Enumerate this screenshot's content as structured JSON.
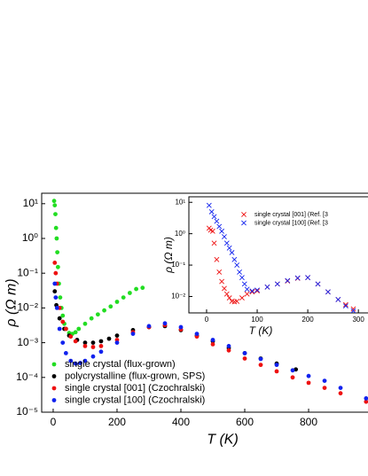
{
  "chart_data": [
    {
      "type": "scatter",
      "log_y": true,
      "marker": "circle",
      "x_label": "T (K)",
      "y_label": "ρ (Ω m)",
      "xlim": [
        -36,
        986
      ],
      "ylim": [
        1e-05,
        20
      ],
      "xticks": [
        0,
        200,
        400,
        600,
        800
      ],
      "yticks": [
        {
          "value": 10,
          "label": "10¹"
        },
        {
          "value": 1,
          "label": "10⁰"
        },
        {
          "value": 0.1,
          "label": "10⁻¹"
        },
        {
          "value": 0.01,
          "label": "10⁻²"
        },
        {
          "value": 0.001,
          "label": "10⁻³"
        },
        {
          "value": 0.0001,
          "label": "10⁻⁴"
        },
        {
          "value": 1e-05,
          "label": "10⁻⁵"
        }
      ],
      "legend": "lower left",
      "series": [
        {
          "name": "single crystal (flux-grown)",
          "color": "#22dd22",
          "x": [
            3,
            5,
            7,
            9,
            11,
            13,
            15,
            18,
            22,
            26,
            30,
            35,
            40,
            50,
            60,
            70,
            80,
            100,
            120,
            140,
            160,
            180,
            200,
            220,
            240,
            260,
            280
          ],
          "values": [
            12,
            9,
            5,
            2,
            1,
            0.4,
            0.15,
            0.05,
            0.02,
            0.01,
            0.006,
            0.0035,
            0.0025,
            0.0019,
            0.0018,
            0.002,
            0.0025,
            0.0035,
            0.005,
            0.0065,
            0.0085,
            0.011,
            0.015,
            0.02,
            0.027,
            0.035,
            0.038
          ]
        },
        {
          "name": "polycrystalline (flux-grown, SPS)",
          "color": "#000000",
          "x": [
            5,
            10,
            20,
            35,
            50,
            75,
            100,
            125,
            150,
            175,
            200,
            250,
            300,
            350,
            400,
            450,
            500,
            550,
            600,
            650,
            700,
            760
          ],
          "values": [
            0.03,
            0.012,
            0.005,
            0.0025,
            0.0016,
            0.0012,
            0.001,
            0.001,
            0.0011,
            0.0013,
            0.0016,
            0.0023,
            0.0028,
            0.003,
            0.0023,
            0.0016,
            0.0011,
            0.0007,
            0.0005,
            0.00035,
            0.00025,
            0.00017
          ]
        },
        {
          "name": "single crystal [001] (Czochralski)",
          "color": "#ee1111",
          "x": [
            5,
            8,
            12,
            20,
            30,
            40,
            55,
            70,
            100,
            125,
            150,
            200,
            250,
            300,
            350,
            400,
            450,
            500,
            550,
            600,
            650,
            700,
            750,
            800,
            850,
            900,
            980
          ],
          "values": [
            0.2,
            0.1,
            0.05,
            0.01,
            0.004,
            0.0025,
            0.0015,
            0.0011,
            0.0008,
            0.00075,
            0.0008,
            0.0012,
            0.002,
            0.0028,
            0.0032,
            0.0024,
            0.0015,
            0.0009,
            0.0006,
            0.00035,
            0.00023,
            0.00015,
            0.0001,
            7e-05,
            5e-05,
            3.5e-05,
            2e-05
          ]
        },
        {
          "name": "single crystal [100] (Czochralski)",
          "color": "#1122ee",
          "x": [
            5,
            8,
            12,
            20,
            30,
            40,
            55,
            70,
            85,
            100,
            125,
            150,
            200,
            250,
            300,
            350,
            400,
            450,
            500,
            550,
            600,
            650,
            700,
            750,
            800,
            850,
            900,
            980
          ],
          "values": [
            0.05,
            0.02,
            0.01,
            0.0025,
            0.001,
            0.0005,
            0.0003,
            0.00025,
            0.00026,
            0.0003,
            0.0004,
            0.00055,
            0.001,
            0.0018,
            0.003,
            0.0036,
            0.0028,
            0.0018,
            0.0012,
            0.0008,
            0.0005,
            0.00034,
            0.00023,
            0.00016,
            0.00011,
            8e-05,
            5e-05,
            2.5e-05
          ]
        }
      ]
    },
    {
      "type": "scatter",
      "log_y": true,
      "marker": "cross",
      "x_label": "T (K)",
      "y_label": "ρ (Ω m)",
      "xlim": [
        -35,
        319
      ],
      "ylim": [
        0.003,
        15
      ],
      "xticks": [
        0,
        100,
        200,
        300
      ],
      "yticks": [
        {
          "value": 10,
          "label": "10¹"
        },
        {
          "value": 1,
          "label": "10⁰"
        },
        {
          "value": 0.1,
          "label": "10⁻¹"
        },
        {
          "value": 0.01,
          "label": "10⁻²"
        }
      ],
      "legend": "upper right",
      "series": [
        {
          "name": "single crystal [001] (Ref. [3",
          "color": "#ee1111",
          "x": [
            5,
            8,
            12,
            15,
            20,
            25,
            30,
            35,
            40,
            45,
            50,
            55,
            60,
            70,
            80,
            90,
            100,
            120,
            140,
            160,
            180,
            200,
            220,
            240,
            260,
            275,
            290
          ],
          "values": [
            1.5,
            1.3,
            1.2,
            0.5,
            0.15,
            0.06,
            0.03,
            0.018,
            0.012,
            0.009,
            0.007,
            0.0068,
            0.007,
            0.009,
            0.012,
            0.014,
            0.015,
            0.02,
            0.025,
            0.031,
            0.038,
            0.04,
            0.025,
            0.014,
            0.008,
            0.0055,
            0.004
          ]
        },
        {
          "name": "single crystal [100] (Ref. [3",
          "color": "#1122ee",
          "x": [
            5,
            10,
            15,
            20,
            25,
            30,
            35,
            40,
            45,
            50,
            55,
            60,
            65,
            70,
            75,
            80,
            90,
            100,
            120,
            140,
            160,
            180,
            200,
            220,
            240,
            260,
            275,
            290
          ],
          "values": [
            8,
            5,
            3.5,
            2.5,
            1.7,
            1.2,
            0.8,
            0.5,
            0.35,
            0.25,
            0.15,
            0.1,
            0.06,
            0.04,
            0.025,
            0.017,
            0.015,
            0.016,
            0.02,
            0.025,
            0.032,
            0.039,
            0.04,
            0.025,
            0.014,
            0.008,
            0.005,
            0.0035
          ]
        }
      ]
    }
  ]
}
